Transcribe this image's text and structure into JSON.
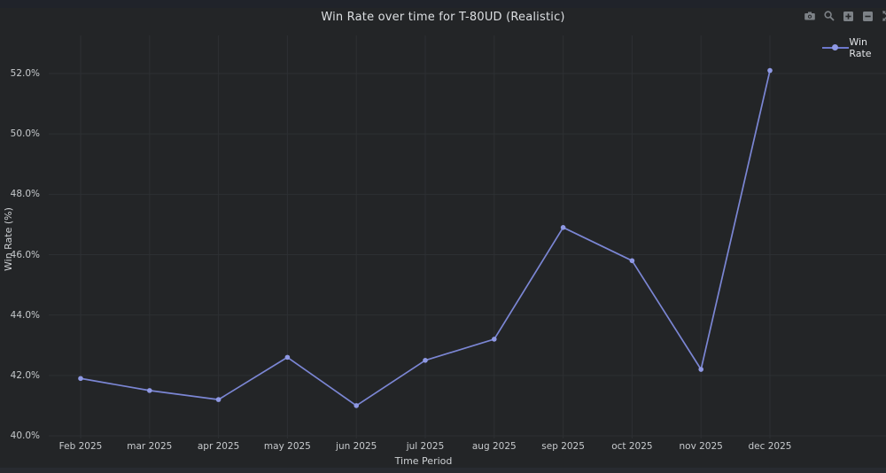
{
  "page": {
    "title": "Win Rate over time for T-80UD (Realistic)"
  },
  "toolbar": {
    "icons": [
      "camera-icon",
      "zoom-icon",
      "zoom-in-icon",
      "zoom-out-icon",
      "autoscale-icon",
      "reset-axes-icon"
    ]
  },
  "legend": {
    "items": [
      {
        "label": "Win Rate",
        "line_color": "#6c78cc",
        "marker_color": "#8f99e4"
      }
    ]
  },
  "chart_data": {
    "type": "line",
    "title": "Win Rate over time for T-80UD (Realistic)",
    "xlabel": "Time Period",
    "ylabel": "Win Rate (%)",
    "categories": [
      "Feb 2025",
      "mar 2025",
      "apr 2025",
      "may 2025",
      "jun 2025",
      "jul 2025",
      "aug 2025",
      "sep 2025",
      "oct 2025",
      "nov 2025",
      "dec 2025"
    ],
    "series": [
      {
        "name": "Win Rate",
        "color": "#7b86d4",
        "values": [
          41.9,
          41.5,
          41.2,
          42.6,
          41.0,
          42.5,
          43.2,
          46.9,
          45.8,
          42.2,
          52.1
        ]
      }
    ],
    "yticks": [
      40.0,
      42.0,
      44.0,
      46.0,
      48.0,
      50.0,
      52.0
    ],
    "ytick_labels": [
      "40.0%",
      "42.0%",
      "44.0%",
      "46.0%",
      "48.0%",
      "50.0%",
      "52.0%"
    ],
    "ylim": [
      39.8,
      52.4
    ],
    "grid": true,
    "legend_position": "top-right"
  },
  "colors": {
    "background": "#232527",
    "grid": "#2d3033",
    "line": "#7b86d4",
    "marker": "#8f99e4",
    "title_text": "#dcdfe2",
    "tick_text": "#c7cacd",
    "icon": "#7d8287"
  }
}
